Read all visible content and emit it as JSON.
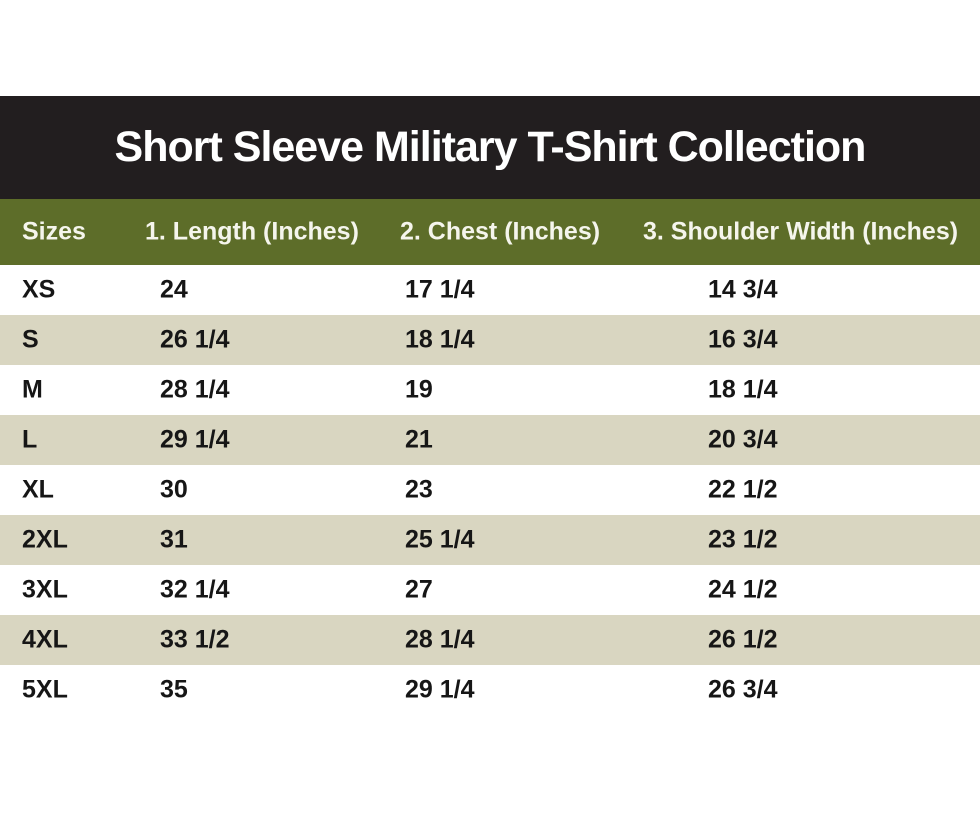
{
  "title": "Short Sleeve Military T-Shirt Collection",
  "colors": {
    "banner_background": "#221e1f",
    "banner_text": "#ffffff",
    "header_background": "#5d6d29",
    "header_text": "#f5f5ec",
    "row_alt_background": "#d9d6c1",
    "row_background": "#ffffff",
    "body_text": "#161616"
  },
  "table": {
    "headers": [
      "Sizes",
      "1. Length (Inches)",
      "2. Chest (Inches)",
      "3. Shoulder Width (Inches)"
    ],
    "rows": [
      [
        "XS",
        "24",
        "17 1/4",
        "14 3/4"
      ],
      [
        "S",
        "26 1/4",
        "18 1/4",
        "16 3/4"
      ],
      [
        "M",
        "28 1/4",
        "19",
        "18 1/4"
      ],
      [
        "L",
        "29 1/4",
        "21",
        "20 3/4"
      ],
      [
        "XL",
        "30",
        "23",
        "22 1/2"
      ],
      [
        "2XL",
        "31",
        "25 1/4",
        "23 1/2"
      ],
      [
        "3XL",
        "32 1/4",
        "27",
        "24 1/2"
      ],
      [
        "4XL",
        "33 1/2",
        "28 1/4",
        "26 1/2"
      ],
      [
        "5XL",
        "35",
        "29 1/4",
        "26 3/4"
      ]
    ]
  },
  "chart_data": {
    "type": "table",
    "title": "Short Sleeve Military T-Shirt Collection",
    "columns": [
      "Sizes",
      "1. Length (Inches)",
      "2. Chest (Inches)",
      "3. Shoulder Width (Inches)"
    ],
    "rows": [
      [
        "XS",
        "24",
        "17 1/4",
        "14 3/4"
      ],
      [
        "S",
        "26 1/4",
        "18 1/4",
        "16 3/4"
      ],
      [
        "M",
        "28 1/4",
        "19",
        "18 1/4"
      ],
      [
        "L",
        "29 1/4",
        "21",
        "20 3/4"
      ],
      [
        "XL",
        "30",
        "23",
        "22 1/2"
      ],
      [
        "2XL",
        "31",
        "25 1/4",
        "23 1/2"
      ],
      [
        "3XL",
        "32 1/4",
        "27",
        "24 1/2"
      ],
      [
        "4XL",
        "33 1/2",
        "28 1/4",
        "26 1/2"
      ],
      [
        "5XL",
        "35",
        "29 1/4",
        "26 3/4"
      ]
    ]
  }
}
